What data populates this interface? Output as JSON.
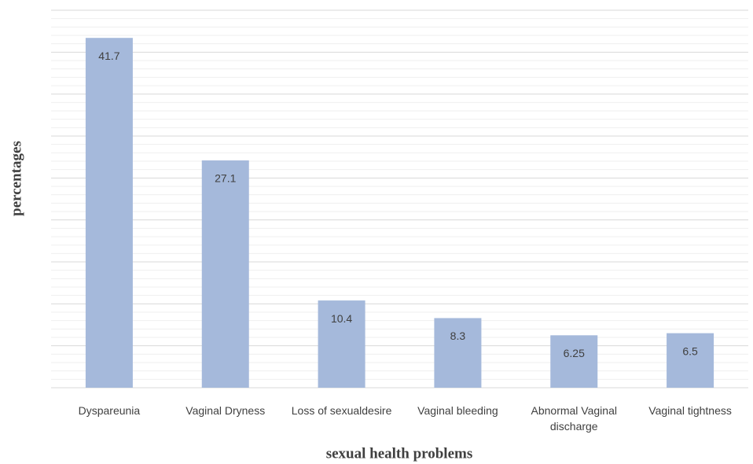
{
  "chart_data": {
    "type": "bar",
    "x_label": "sexual health problems",
    "y_label": "percentages",
    "categories": [
      "Dyspareunia",
      "Vaginal Dryness",
      "Loss of sexualdesire",
      "Vaginal bleeding",
      "Abnormal Vaginal discharge",
      "Vaginal tightness"
    ],
    "values": [
      41.7,
      27.1,
      10.4,
      8.3,
      6.25,
      6.5
    ],
    "color": "#a5b9db",
    "ylim": [
      0,
      45
    ],
    "yticks": [
      0,
      5,
      10,
      15,
      20,
      25,
      30,
      35,
      40,
      45
    ],
    "yminorticks": [
      1,
      2,
      3,
      4,
      6,
      7,
      8,
      9,
      11,
      12,
      13,
      14,
      16,
      17,
      18,
      19,
      21,
      22,
      23,
      24,
      26,
      27,
      28,
      29,
      31,
      32,
      33,
      34,
      36,
      37,
      38,
      39,
      41,
      42,
      43,
      44
    ],
    "grid": true,
    "data_labels": true
  }
}
